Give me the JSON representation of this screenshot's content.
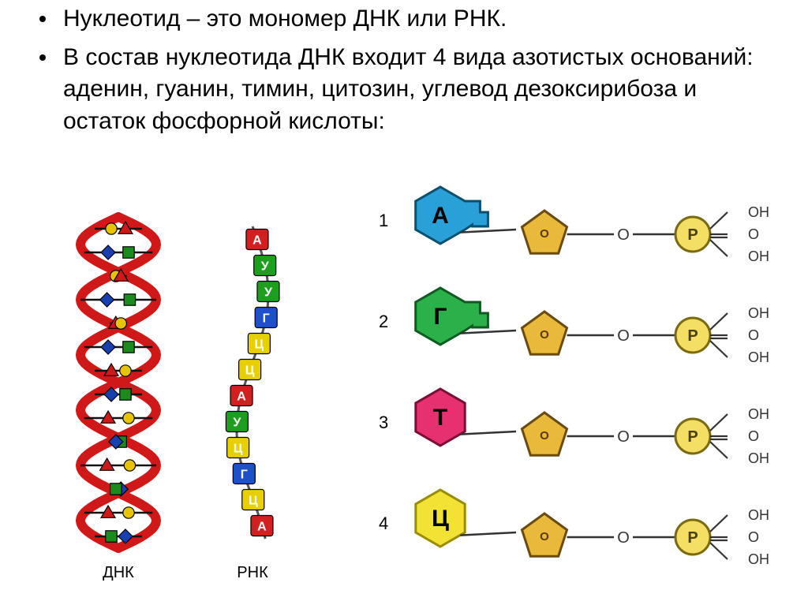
{
  "bullets": [
    "Нуклеотид – это мономер ДНК или РНК.",
    "В состав нуклеотида ДНК входит 4 вида азотистых оснований: аденин, гуанин, тимин, цитозин, углевод дезоксирибоза и остаток фосфорной кислоты:"
  ],
  "dna_label": "ДНК",
  "rna_label": "РНК",
  "rna_colors": {
    "A": "#d22020",
    "U": "#1e9e1e",
    "G": "#1e50c8",
    "C": "#e8d000"
  },
  "rna_sequence": [
    "А",
    "У",
    "У",
    "Г",
    "Ц",
    "Ц",
    "А",
    "У",
    "Ц",
    "Г",
    "Ц",
    "А"
  ],
  "nucleotides": [
    {
      "num": "1",
      "letter": "А",
      "hex_fill": "#2aa0d8",
      "hex_stroke": "#08506e",
      "shape": "hex-notch"
    },
    {
      "num": "2",
      "letter": "Г",
      "hex_fill": "#2bb14a",
      "hex_stroke": "#0e5a22",
      "shape": "hex-notch"
    },
    {
      "num": "3",
      "letter": "Т",
      "hex_fill": "#e73070",
      "hex_stroke": "#7a0d35",
      "shape": "hex-plain"
    },
    {
      "num": "4",
      "letter": "Ц",
      "hex_fill": "#f2e233",
      "hex_stroke": "#9a8c00",
      "shape": "hex-plain"
    }
  ],
  "colors": {
    "sugar_fill": "#e8b93a",
    "sugar_stroke": "#6b4a10",
    "phos_fill": "#f4de63",
    "phos_stroke": "#7a6a10",
    "bond": "#333333",
    "o_label": "#333333",
    "oh_label": "#333333",
    "dna_backbone": "#d01818",
    "dna_rung": "#111111",
    "shape_red": "#d01818",
    "shape_green": "#1c8a1c",
    "shape_blue": "#1840b0",
    "shape_yellow": "#e8c400",
    "outline": "#000000"
  },
  "phosphate_labels": [
    "OH",
    "O",
    "OH"
  ]
}
